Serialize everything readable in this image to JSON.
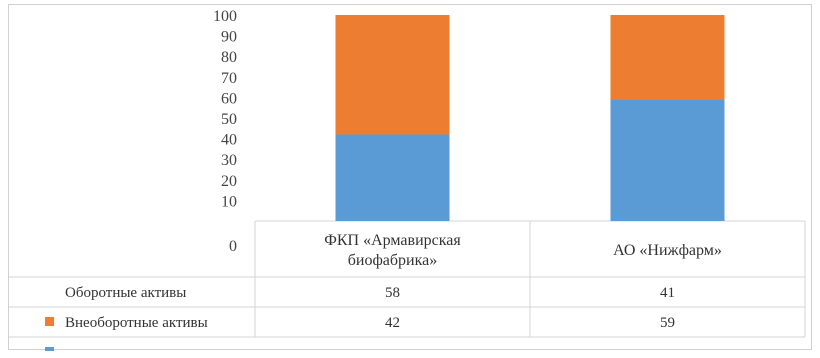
{
  "chart_data": {
    "type": "bar",
    "stacked": true,
    "categories": [
      "ФКП «Армавирская биофабрика»",
      "АО «Нижфарм»"
    ],
    "series": [
      {
        "name": "Оборотные активы",
        "values": [
          58,
          41
        ],
        "color": "#ED7D31"
      },
      {
        "name": "Внеоборотные активы",
        "values": [
          42,
          59
        ],
        "color": "#5B9BD5"
      }
    ],
    "yticks": [
      "0",
      "10",
      "20",
      "30",
      "40",
      "50",
      "60",
      "70",
      "80",
      "90",
      "100"
    ],
    "ylim": [
      0,
      100
    ],
    "legend": "data-table",
    "grid": false
  }
}
